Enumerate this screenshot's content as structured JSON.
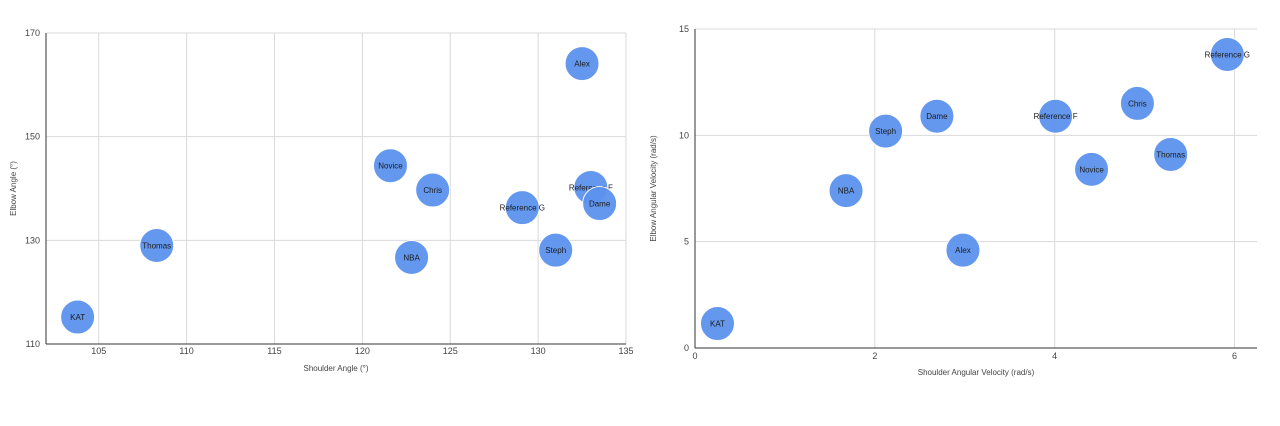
{
  "colors": {
    "bubble": "#5c93ef",
    "bubble_stroke": "#ffffff"
  },
  "chart_data": [
    {
      "type": "scatter",
      "title": "",
      "xlabel": "Shoulder Angle (°)",
      "ylabel": "Elbow Angle (°)",
      "xlim": [
        102,
        135
      ],
      "ylim": [
        110,
        170
      ],
      "xticks": [
        105,
        110,
        115,
        120,
        125,
        130,
        135
      ],
      "yticks": [
        110,
        130,
        150,
        170
      ],
      "grid": true,
      "points": [
        {
          "label": "KAT",
          "x": 103.8,
          "y": 115.2
        },
        {
          "label": "Thomas",
          "x": 108.3,
          "y": 129.0
        },
        {
          "label": "Novice",
          "x": 121.6,
          "y": 144.4
        },
        {
          "label": "Chris",
          "x": 124.0,
          "y": 139.7
        },
        {
          "label": "NBA",
          "x": 122.8,
          "y": 126.7
        },
        {
          "label": "Reference G",
          "x": 129.1,
          "y": 136.3
        },
        {
          "label": "Steph",
          "x": 131.0,
          "y": 128.1
        },
        {
          "label": "Alex",
          "x": 132.5,
          "y": 164.1
        },
        {
          "label": "Reference F",
          "x": 133.0,
          "y": 140.2
        },
        {
          "label": "Dame",
          "x": 133.5,
          "y": 137.1
        }
      ]
    },
    {
      "type": "scatter",
      "title": "",
      "xlabel": "Shoulder Angular Velocity (rad/s)",
      "ylabel": "Elbow Angular Velocity (rad/s)",
      "xlim": [
        0,
        6.25
      ],
      "ylim": [
        0,
        15
      ],
      "xticks": [
        0,
        2,
        4,
        6
      ],
      "yticks": [
        0,
        5,
        10,
        15
      ],
      "grid": true,
      "points": [
        {
          "label": "KAT",
          "x": 0.25,
          "y": 1.15
        },
        {
          "label": "NBA",
          "x": 1.68,
          "y": 7.4
        },
        {
          "label": "Steph",
          "x": 2.12,
          "y": 10.2
        },
        {
          "label": "Dame",
          "x": 2.69,
          "y": 10.9
        },
        {
          "label": "Alex",
          "x": 2.98,
          "y": 4.6
        },
        {
          "label": "Reference F",
          "x": 4.01,
          "y": 10.9
        },
        {
          "label": "Novice",
          "x": 4.41,
          "y": 8.4
        },
        {
          "label": "Chris",
          "x": 4.92,
          "y": 11.5
        },
        {
          "label": "Thomas",
          "x": 5.29,
          "y": 9.1
        },
        {
          "label": "Reference G",
          "x": 5.92,
          "y": 13.8
        }
      ]
    }
  ]
}
